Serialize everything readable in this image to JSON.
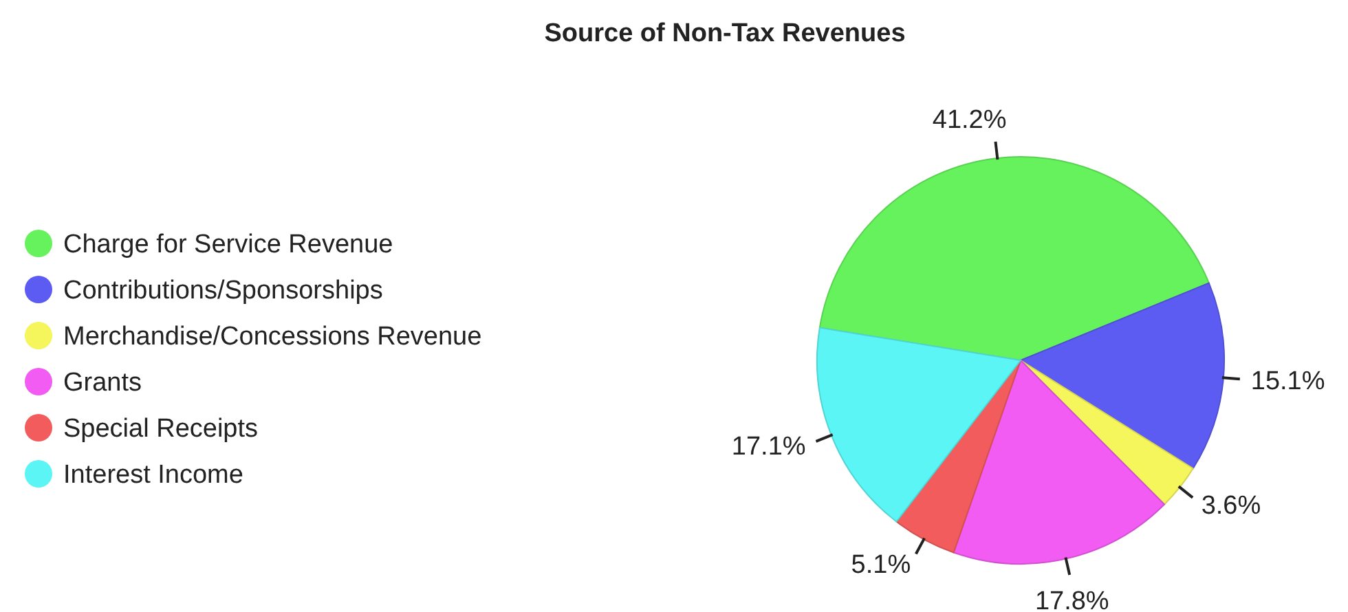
{
  "chart_data": {
    "type": "pie",
    "title": "Source of Non-Tax Revenues",
    "categories": [
      "Charge for Service Revenue",
      "Contributions/Sponsorships",
      "Merchandise/Concessions Revenue",
      "Grants",
      "Special Receipts",
      "Interest Income"
    ],
    "values": [
      41.2,
      15.1,
      3.6,
      17.8,
      5.1,
      17.1
    ],
    "value_labels": [
      "41.2%",
      "15.1%",
      "3.6%",
      "17.8%",
      "5.1%",
      "17.1%"
    ],
    "colors": [
      "#66f25c",
      "#5c5cf2",
      "#f5f55c",
      "#f25cf2",
      "#f25c5c",
      "#5cf5f5"
    ],
    "legend": "left"
  }
}
